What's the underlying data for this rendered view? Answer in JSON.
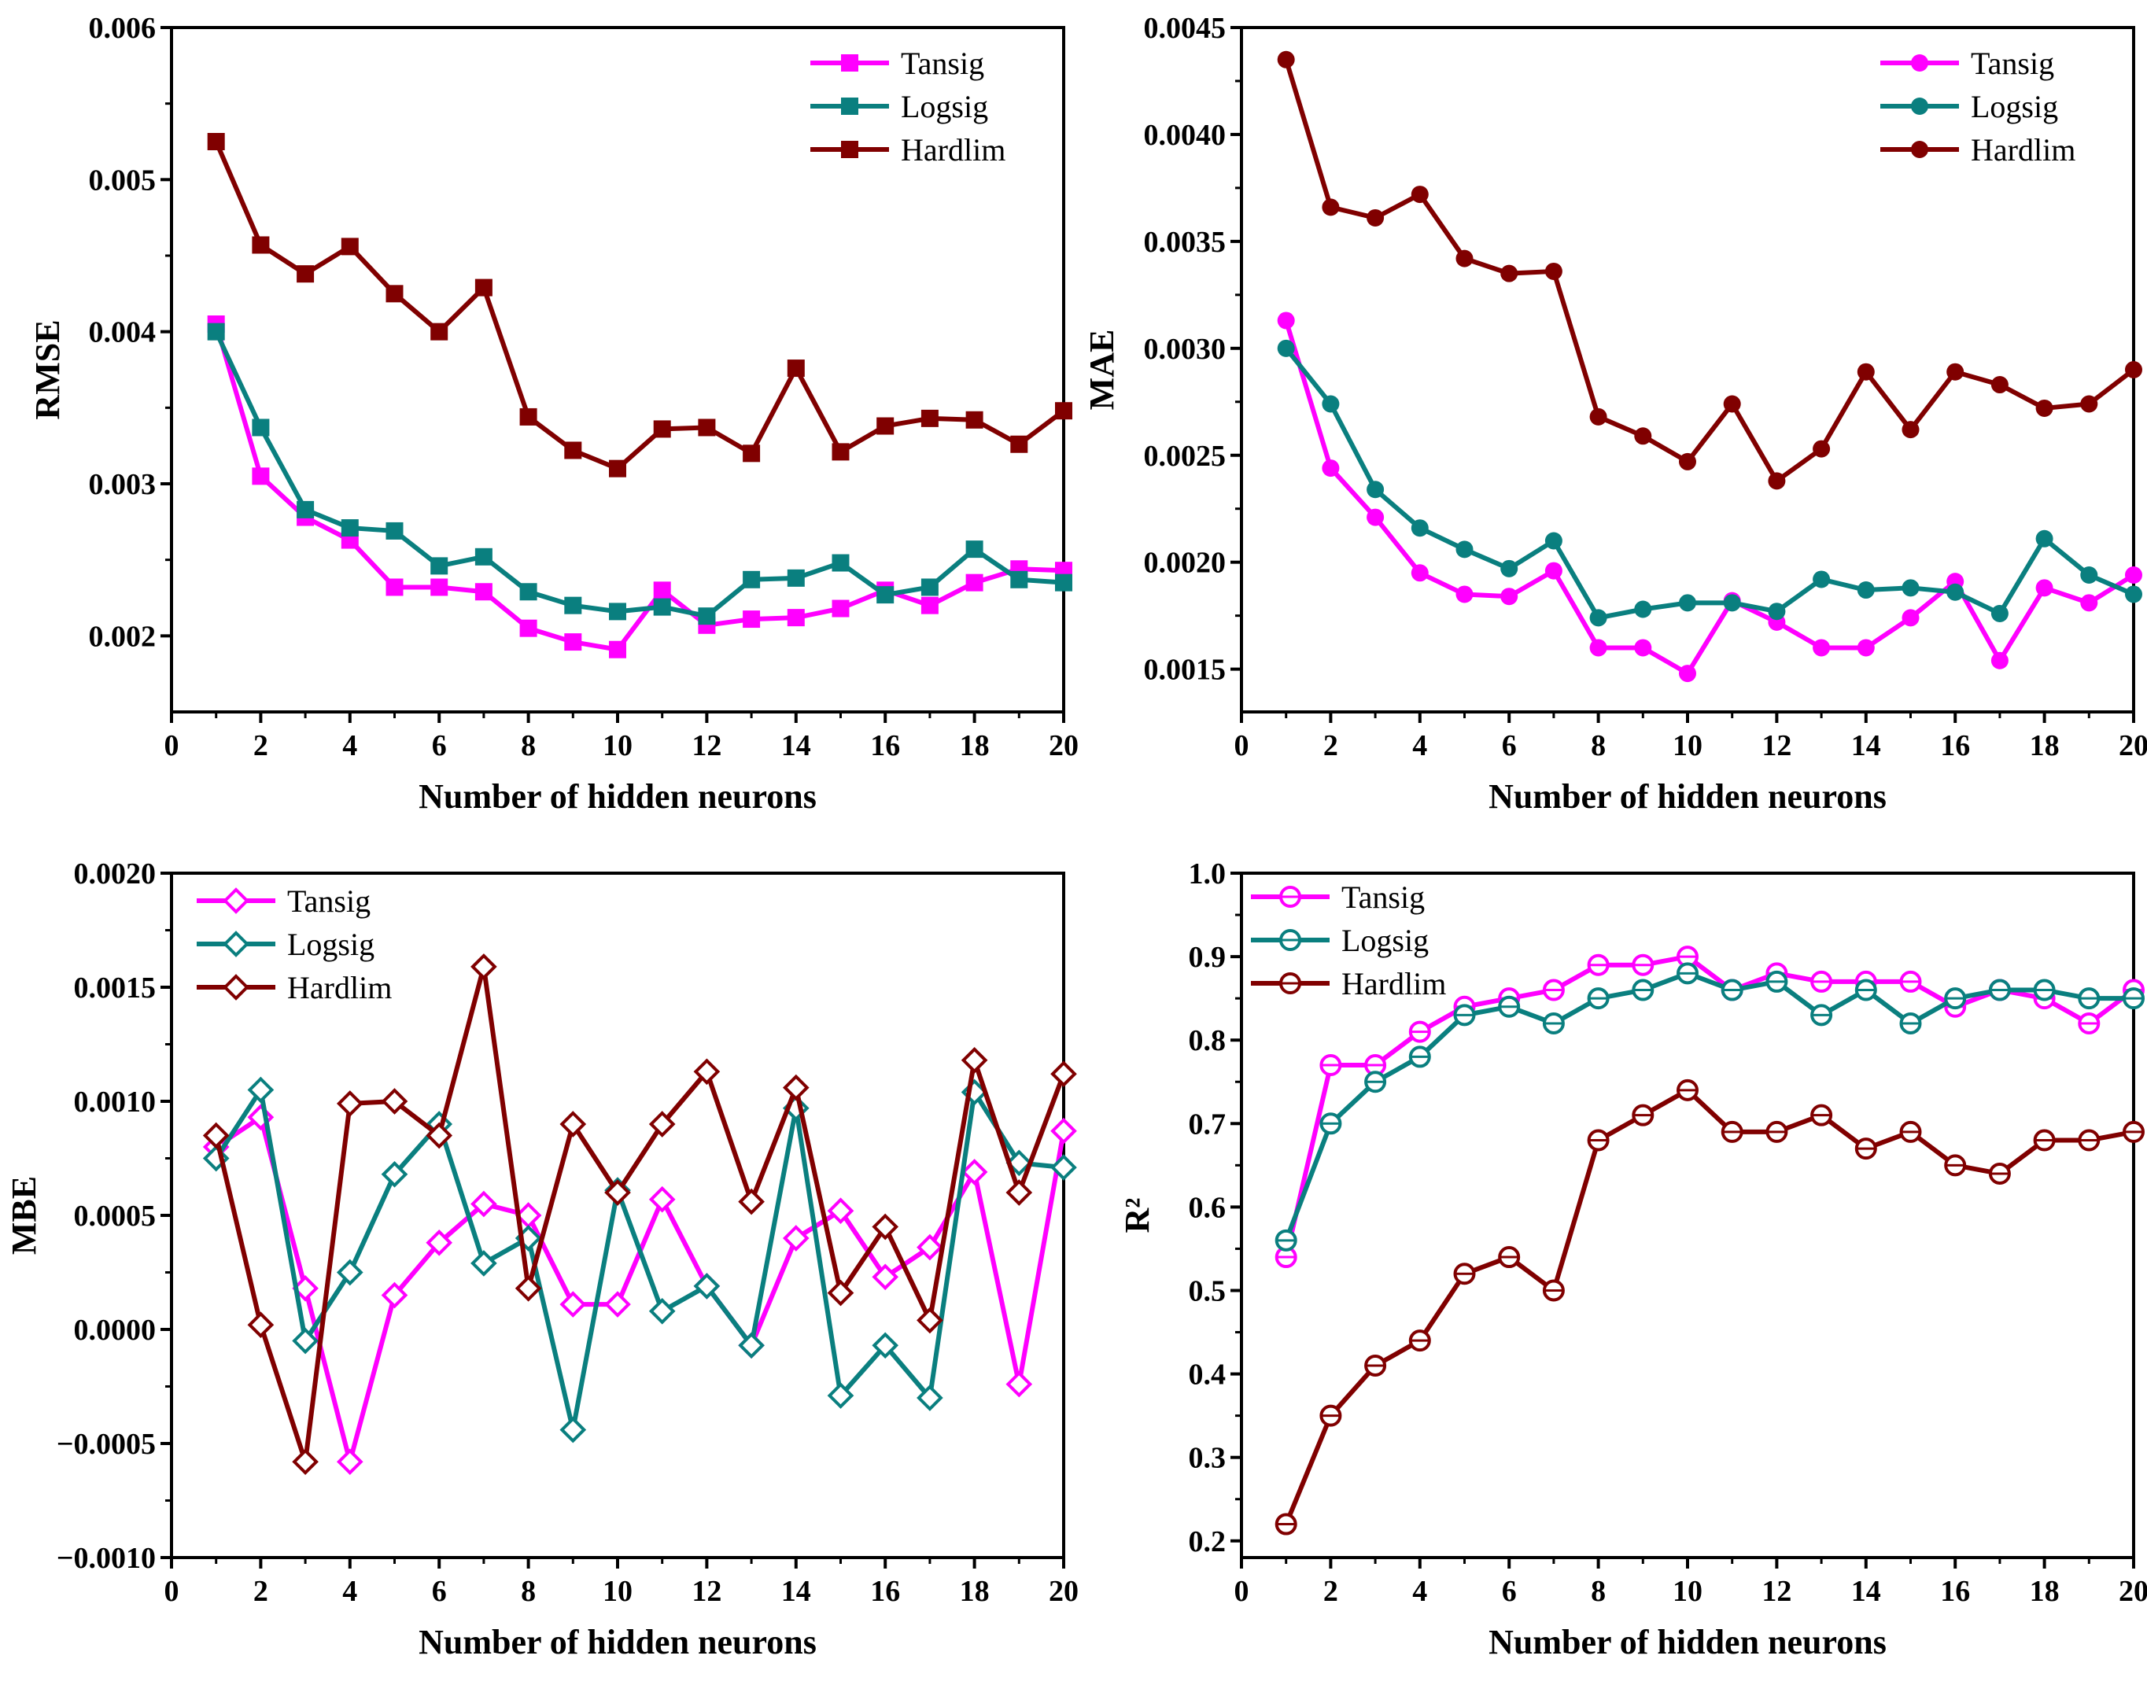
{
  "colors": {
    "tansig": "#ff00ff",
    "logsig": "#0a7f7f",
    "hardlim": "#800000"
  },
  "chart_data": [
    {
      "type": "line",
      "marker": "filled-square",
      "xlabel": "Number of hidden neurons",
      "ylabel": "RMSE",
      "xlim": [
        0,
        20
      ],
      "ylim": [
        0.0015,
        0.006
      ],
      "xticks": [
        "0",
        "2",
        "4",
        "6",
        "8",
        "10",
        "12",
        "14",
        "16",
        "18",
        "20"
      ],
      "yticks": [
        {
          "v": 0.002,
          "label": "0.002"
        },
        {
          "v": 0.003,
          "label": "0.003"
        },
        {
          "v": 0.004,
          "label": "0.004"
        },
        {
          "v": 0.005,
          "label": "0.005"
        },
        {
          "v": 0.006,
          "label": "0.006"
        }
      ],
      "legend": "top-right",
      "x": [
        1,
        2,
        3,
        4,
        5,
        6,
        7,
        8,
        9,
        10,
        11,
        12,
        13,
        14,
        15,
        16,
        17,
        18,
        19,
        20
      ],
      "series": [
        {
          "name": "Tansig",
          "color": "#ff00ff",
          "values": [
            0.00405,
            0.00305,
            0.00278,
            0.00263,
            0.00232,
            0.00232,
            0.00229,
            0.00205,
            0.00196,
            0.00191,
            0.0023,
            0.00207,
            0.00211,
            0.00212,
            0.00218,
            0.0023,
            0.0022,
            0.00235,
            0.00244,
            0.00243
          ]
        },
        {
          "name": "Logsig",
          "color": "#0a7f7f",
          "values": [
            0.004,
            0.00337,
            0.00283,
            0.00271,
            0.00269,
            0.00246,
            0.00252,
            0.00229,
            0.0022,
            0.00216,
            0.00219,
            0.00213,
            0.00237,
            0.00238,
            0.00248,
            0.00227,
            0.00232,
            0.00257,
            0.00237,
            0.00235
          ]
        },
        {
          "name": "Hardlim",
          "color": "#800000",
          "values": [
            0.00525,
            0.00457,
            0.00438,
            0.00456,
            0.00425,
            0.004,
            0.00429,
            0.00344,
            0.00322,
            0.0031,
            0.00336,
            0.00337,
            0.0032,
            0.00376,
            0.00321,
            0.00338,
            0.00343,
            0.00342,
            0.00326,
            0.00348
          ]
        }
      ]
    },
    {
      "type": "line",
      "marker": "filled-circle",
      "xlabel": "Number of hidden neurons",
      "ylabel": "MAE",
      "xlim": [
        0,
        20
      ],
      "ylim": [
        0.0013,
        0.0045
      ],
      "xticks": [
        "0",
        "2",
        "4",
        "6",
        "8",
        "10",
        "12",
        "14",
        "16",
        "18",
        "20"
      ],
      "yticks": [
        {
          "v": 0.0015,
          "label": "0.0015"
        },
        {
          "v": 0.002,
          "label": "0.0020"
        },
        {
          "v": 0.0025,
          "label": "0.0025"
        },
        {
          "v": 0.003,
          "label": "0.0030"
        },
        {
          "v": 0.0035,
          "label": "0.0035"
        },
        {
          "v": 0.004,
          "label": "0.0040"
        },
        {
          "v": 0.0045,
          "label": "0.0045"
        }
      ],
      "legend": "top-right",
      "x": [
        1,
        2,
        3,
        4,
        5,
        6,
        7,
        8,
        9,
        10,
        11,
        12,
        13,
        14,
        15,
        16,
        17,
        18,
        19,
        20
      ],
      "series": [
        {
          "name": "Tansig",
          "color": "#ff00ff",
          "values": [
            0.00313,
            0.00244,
            0.00221,
            0.00195,
            0.00185,
            0.00184,
            0.00196,
            0.0016,
            0.0016,
            0.00148,
            0.00182,
            0.00172,
            0.0016,
            0.0016,
            0.00174,
            0.00191,
            0.00154,
            0.00188,
            0.00181,
            0.00194
          ]
        },
        {
          "name": "Logsig",
          "color": "#0a7f7f",
          "values": [
            0.003,
            0.00274,
            0.00234,
            0.00216,
            0.00206,
            0.00197,
            0.0021,
            0.00174,
            0.00178,
            0.00181,
            0.00181,
            0.00177,
            0.00192,
            0.00187,
            0.00188,
            0.00186,
            0.00176,
            0.00211,
            0.00194,
            0.00185
          ]
        },
        {
          "name": "Hardlim",
          "color": "#800000",
          "values": [
            0.00435,
            0.00366,
            0.00361,
            0.00372,
            0.00342,
            0.00335,
            0.00336,
            0.00268,
            0.00259,
            0.00247,
            0.00274,
            0.00238,
            0.00253,
            0.00289,
            0.00262,
            0.00289,
            0.00283,
            0.00272,
            0.00274,
            0.0029
          ]
        }
      ]
    },
    {
      "type": "line",
      "marker": "open-diamond",
      "xlabel": "Number of hidden neurons",
      "ylabel": "MBE",
      "xlim": [
        0,
        20
      ],
      "ylim": [
        -0.001,
        0.002
      ],
      "xticks": [
        "0",
        "2",
        "4",
        "6",
        "8",
        "10",
        "12",
        "14",
        "16",
        "18",
        "20"
      ],
      "yticks": [
        {
          "v": -0.001,
          "label": "−0.0010"
        },
        {
          "v": -0.0005,
          "label": "−0.0005"
        },
        {
          "v": 0,
          "label": "0.0000"
        },
        {
          "v": 0.0005,
          "label": "0.0005"
        },
        {
          "v": 0.001,
          "label": "0.0010"
        },
        {
          "v": 0.0015,
          "label": "0.0015"
        },
        {
          "v": 0.002,
          "label": "0.0020"
        }
      ],
      "legend": "top-left",
      "x": [
        1,
        2,
        3,
        4,
        5,
        6,
        7,
        8,
        9,
        10,
        11,
        12,
        13,
        14,
        15,
        16,
        17,
        18,
        19,
        20
      ],
      "series": [
        {
          "name": "Tansig",
          "color": "#ff00ff",
          "values": [
            0.0008,
            0.00093,
            0.00018,
            -0.00058,
            0.00015,
            0.00038,
            0.00055,
            0.0005,
            0.00011,
            0.00011,
            0.00057,
            0.00019,
            -7e-05,
            0.0004,
            0.00052,
            0.00023,
            0.00036,
            0.00069,
            -0.00024,
            0.00087
          ]
        },
        {
          "name": "Logsig",
          "color": "#0a7f7f",
          "values": [
            0.00075,
            0.00105,
            -5e-05,
            0.00025,
            0.00068,
            0.0009,
            0.00029,
            0.0004,
            -0.00044,
            0.00061,
            8e-05,
            0.00019,
            -7e-05,
            0.00097,
            -0.00029,
            -7e-05,
            -0.0003,
            0.00104,
            0.00073,
            0.00071
          ]
        },
        {
          "name": "Hardlim",
          "color": "#800000",
          "values": [
            0.00085,
            2e-05,
            -0.00058,
            0.00099,
            0.001,
            0.00085,
            0.00159,
            0.00018,
            0.0009,
            0.0006,
            0.0009,
            0.00113,
            0.00056,
            0.00106,
            0.00016,
            0.00045,
            4e-05,
            0.00118,
            0.0006,
            0.00112
          ]
        }
      ]
    },
    {
      "type": "line",
      "marker": "open-circle",
      "xlabel": "Number of hidden neurons",
      "ylabel": "R²",
      "xlim": [
        0,
        20
      ],
      "ylim": [
        0.18,
        1.0
      ],
      "xticks": [
        "0",
        "2",
        "4",
        "6",
        "8",
        "10",
        "12",
        "14",
        "16",
        "18",
        "20"
      ],
      "yticks": [
        {
          "v": 0.2,
          "label": "0.2"
        },
        {
          "v": 0.3,
          "label": "0.3"
        },
        {
          "v": 0.4,
          "label": "0.4"
        },
        {
          "v": 0.5,
          "label": "0.5"
        },
        {
          "v": 0.6,
          "label": "0.6"
        },
        {
          "v": 0.7,
          "label": "0.7"
        },
        {
          "v": 0.8,
          "label": "0.8"
        },
        {
          "v": 0.9,
          "label": "0.9"
        },
        {
          "v": 1.0,
          "label": "1.0"
        }
      ],
      "legend": "top-left",
      "x": [
        1,
        2,
        3,
        4,
        5,
        6,
        7,
        8,
        9,
        10,
        11,
        12,
        13,
        14,
        15,
        16,
        17,
        18,
        19,
        20
      ],
      "series": [
        {
          "name": "Tansig",
          "color": "#ff00ff",
          "values": [
            0.54,
            0.77,
            0.77,
            0.81,
            0.84,
            0.85,
            0.86,
            0.89,
            0.89,
            0.9,
            0.86,
            0.88,
            0.87,
            0.87,
            0.87,
            0.84,
            0.86,
            0.85,
            0.82,
            0.86
          ]
        },
        {
          "name": "Logsig",
          "color": "#0a7f7f",
          "values": [
            0.56,
            0.7,
            0.75,
            0.78,
            0.83,
            0.84,
            0.82,
            0.85,
            0.86,
            0.88,
            0.86,
            0.87,
            0.83,
            0.86,
            0.82,
            0.85,
            0.86,
            0.86,
            0.85,
            0.85
          ]
        },
        {
          "name": "Hardlim",
          "color": "#800000",
          "values": [
            0.22,
            0.35,
            0.41,
            0.44,
            0.52,
            0.54,
            0.5,
            0.68,
            0.71,
            0.74,
            0.69,
            0.69,
            0.71,
            0.67,
            0.69,
            0.65,
            0.64,
            0.68,
            0.68,
            0.69
          ]
        }
      ]
    }
  ]
}
